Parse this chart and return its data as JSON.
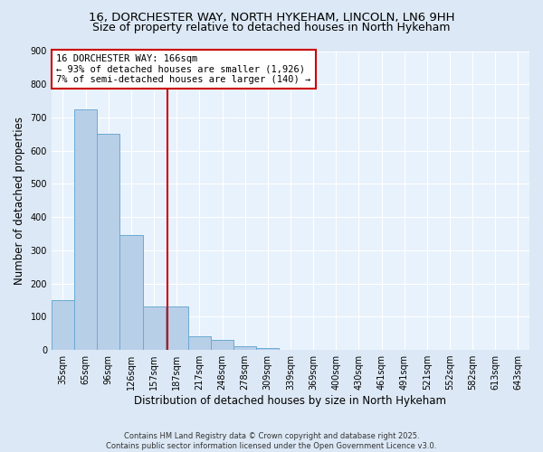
{
  "title1": "16, DORCHESTER WAY, NORTH HYKEHAM, LINCOLN, LN6 9HH",
  "title2": "Size of property relative to detached houses in North Hykeham",
  "xlabel": "Distribution of detached houses by size in North Hykeham",
  "ylabel": "Number of detached properties",
  "categories": [
    "35sqm",
    "65sqm",
    "96sqm",
    "126sqm",
    "157sqm",
    "187sqm",
    "217sqm",
    "248sqm",
    "278sqm",
    "309sqm",
    "339sqm",
    "369sqm",
    "400sqm",
    "430sqm",
    "461sqm",
    "491sqm",
    "521sqm",
    "552sqm",
    "582sqm",
    "613sqm",
    "643sqm"
  ],
  "values": [
    150,
    725,
    650,
    345,
    130,
    130,
    42,
    30,
    12,
    5,
    0,
    0,
    0,
    0,
    0,
    0,
    0,
    0,
    0,
    0,
    0
  ],
  "bar_color": "#b8cfe8",
  "bar_edge_color": "#6aaad4",
  "vline_x_idx": 4.58,
  "vline_color": "#cc0000",
  "annotation_text": "16 DORCHESTER WAY: 166sqm\n← 93% of detached houses are smaller (1,926)\n7% of semi-detached houses are larger (140) →",
  "annotation_box_color": "#ffffff",
  "annotation_box_edge": "#cc0000",
  "ylim": [
    0,
    900
  ],
  "yticks": [
    0,
    100,
    200,
    300,
    400,
    500,
    600,
    700,
    800,
    900
  ],
  "bg_color": "#dce8f5",
  "plot_bg_color": "#e8f2fc",
  "footer": "Contains HM Land Registry data © Crown copyright and database right 2025.\nContains public sector information licensed under the Open Government Licence v3.0.",
  "title_fontsize": 9.5,
  "subtitle_fontsize": 9,
  "axis_label_fontsize": 8.5,
  "tick_fontsize": 7,
  "annotation_fontsize": 7.5,
  "footer_fontsize": 6
}
